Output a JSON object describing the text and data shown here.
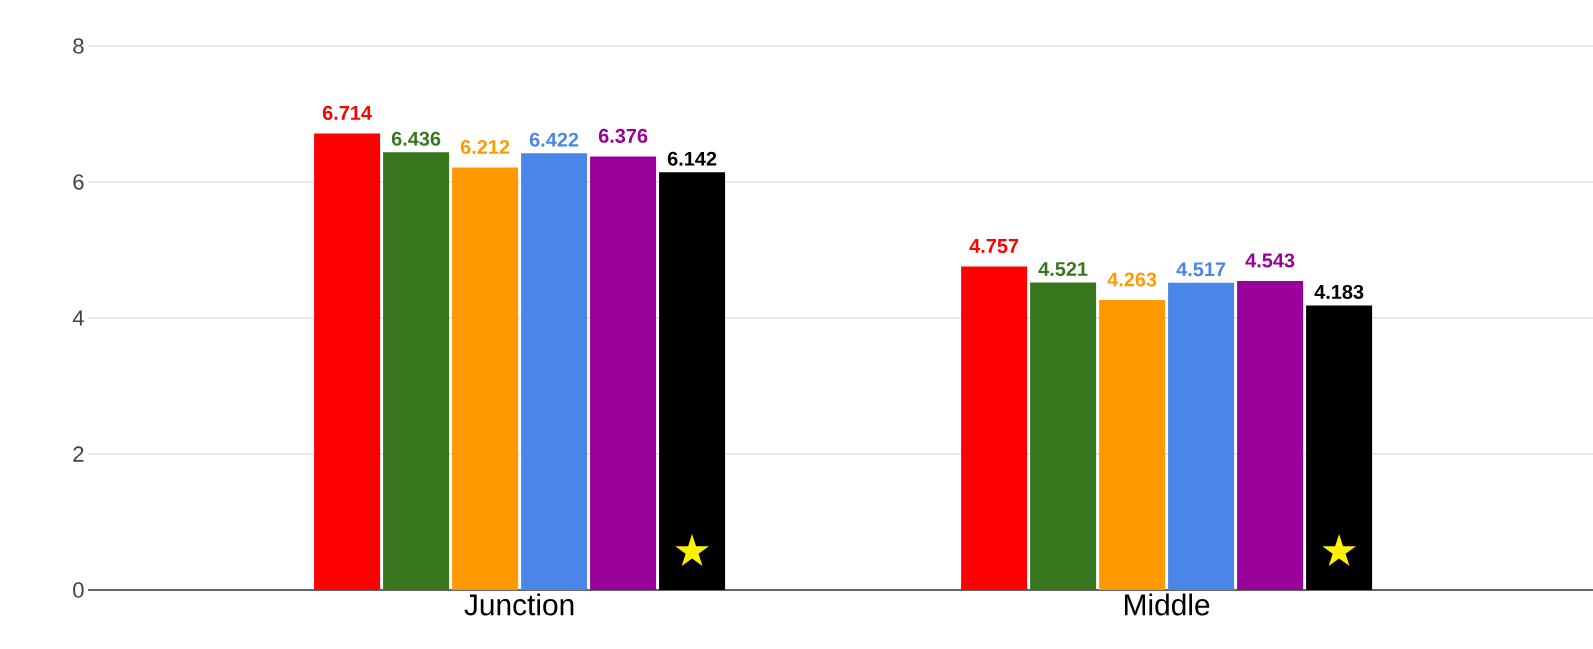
{
  "chart_data": {
    "type": "bar",
    "categories": [
      "Junction",
      "Middle"
    ],
    "series": [
      {
        "color": "#ff0000",
        "values": [
          6.714,
          4.757
        ]
      },
      {
        "color": "#38761d",
        "values": [
          6.436,
          4.521
        ]
      },
      {
        "color": "#ff9900",
        "values": [
          6.212,
          4.263
        ]
      },
      {
        "color": "#4a86e8",
        "values": [
          6.422,
          4.517
        ]
      },
      {
        "color": "#990099",
        "values": [
          6.376,
          4.543
        ]
      },
      {
        "color": "#000000",
        "values": [
          6.142,
          4.183
        ]
      }
    ],
    "ylim": [
      0,
      8
    ],
    "yticks": [
      0,
      2,
      4,
      6,
      8
    ],
    "grid": "y",
    "data_labels": true,
    "annotations": [
      "★",
      "★"
    ]
  }
}
